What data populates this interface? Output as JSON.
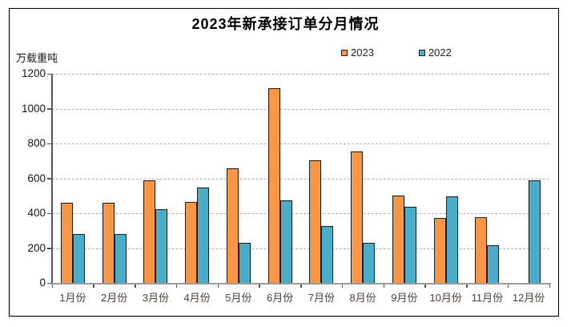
{
  "chart": {
    "title": "2023年新承接订单分月情况",
    "unit_label": "万载重吨"
  },
  "chart_data": {
    "type": "bar",
    "title": "2023年新承接订单分月情况",
    "ylabel": "万载重吨",
    "xlabel": "",
    "categories": [
      "1月份",
      "2月份",
      "3月份",
      "4月份",
      "5月份",
      "6月份",
      "7月份",
      "8月份",
      "9月份",
      "10月份",
      "11月份",
      "12月份"
    ],
    "series": [
      {
        "name": "2023",
        "color": "#F79646",
        "values": [
          458,
          462,
          590,
          465,
          658,
          1118,
          705,
          752,
          500,
          371,
          377,
          null
        ]
      },
      {
        "name": "2022",
        "color": "#4BACC6",
        "values": [
          282,
          282,
          425,
          545,
          230,
          474,
          326,
          230,
          438,
          495,
          216,
          590
        ]
      }
    ],
    "ylim": [
      0,
      1200
    ],
    "ytick_step": 200,
    "yticks": [
      0,
      200,
      400,
      600,
      800,
      1000,
      1200
    ],
    "grid": "horizontal-dashed",
    "legend_position": "top-center",
    "bar_border_color": "#1f1f1f",
    "gridline_color": "#b3b3b3",
    "axis_color": "#595959"
  }
}
